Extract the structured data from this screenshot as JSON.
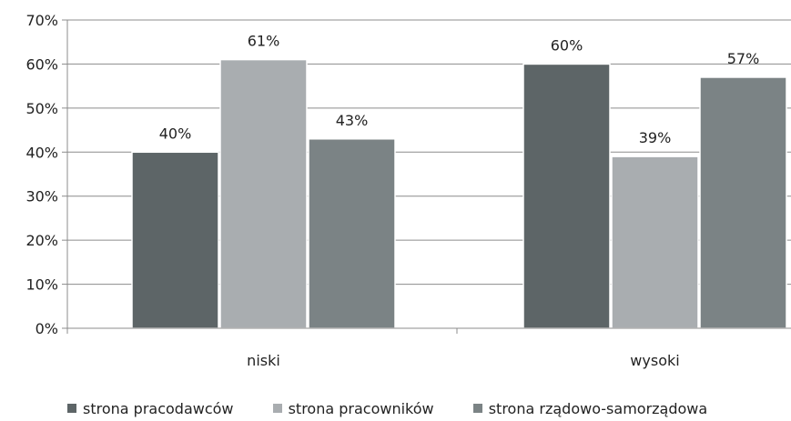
{
  "chart_data": {
    "type": "bar",
    "categories": [
      "niski",
      "wysoki"
    ],
    "series": [
      {
        "name": "strona pracodawców",
        "values": [
          40,
          60
        ],
        "color": "#5d6567"
      },
      {
        "name": "strona pracowników",
        "values": [
          61,
          39
        ],
        "color": "#a9adb0"
      },
      {
        "name": "strona rządowo-samorządowa",
        "values": [
          43,
          57
        ],
        "color": "#7b8385"
      }
    ],
    "data_labels": [
      [
        "40%",
        "60%"
      ],
      [
        "61%",
        "39%"
      ],
      [
        "43%",
        "57%"
      ]
    ],
    "y_ticks": [
      0,
      10,
      20,
      30,
      40,
      50,
      60,
      70
    ],
    "y_tick_labels": [
      "0%",
      "10%",
      "20%",
      "30%",
      "40%",
      "50%",
      "60%",
      "70%"
    ],
    "ylim": [
      0,
      70
    ],
    "grid": true,
    "legend_position": "bottom",
    "title": "",
    "xlabel": "",
    "ylabel": ""
  }
}
